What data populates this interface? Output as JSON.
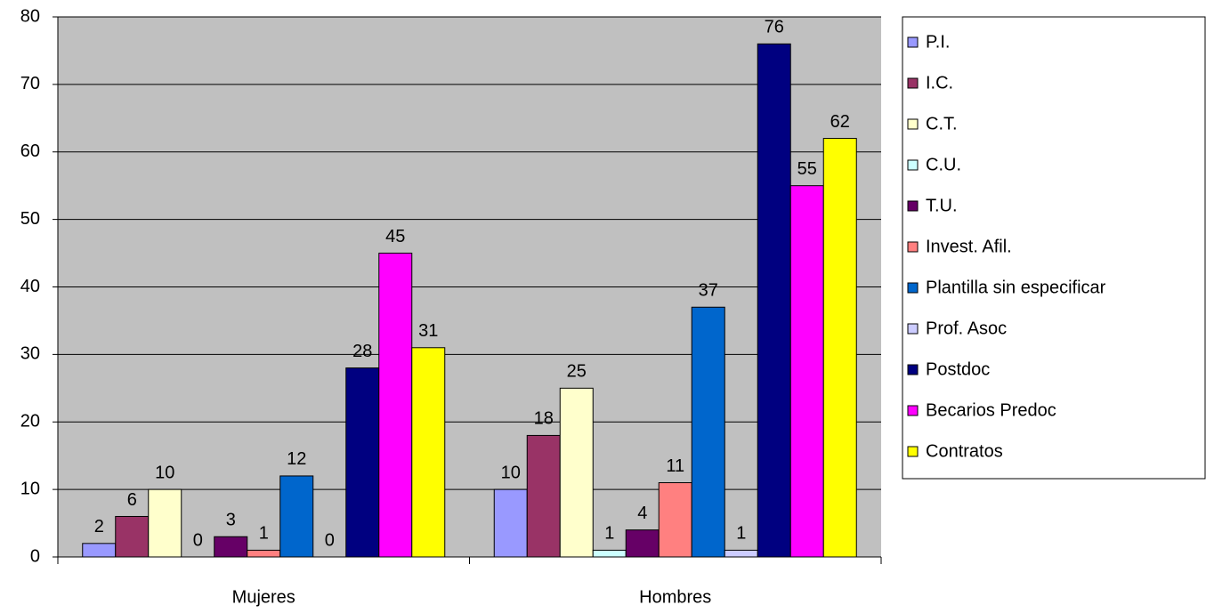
{
  "chart_data": {
    "type": "bar",
    "categories": [
      "Mujeres",
      "Hombres"
    ],
    "series": [
      {
        "name": "P.I.",
        "color": "#9999ff",
        "values": [
          2,
          10
        ]
      },
      {
        "name": "I.C.",
        "color": "#993366",
        "values": [
          6,
          18
        ]
      },
      {
        "name": "C.T.",
        "color": "#ffffcc",
        "values": [
          10,
          25
        ]
      },
      {
        "name": "C.U.",
        "color": "#ccffff",
        "values": [
          0,
          1
        ]
      },
      {
        "name": "T.U.",
        "color": "#660066",
        "values": [
          3,
          4
        ]
      },
      {
        "name": "Invest. Afil.",
        "color": "#ff8080",
        "values": [
          1,
          11
        ]
      },
      {
        "name": "Plantilla sin especificar",
        "color": "#0066cc",
        "values": [
          12,
          37
        ]
      },
      {
        "name": "Prof. Asoc",
        "color": "#ccccff",
        "values": [
          0,
          1
        ]
      },
      {
        "name": "Postdoc",
        "color": "#000080",
        "values": [
          28,
          76
        ]
      },
      {
        "name": "Becarios Predoc",
        "color": "#ff00ff",
        "values": [
          45,
          55
        ]
      },
      {
        "name": "Contratos",
        "color": "#ffff00",
        "values": [
          31,
          62
        ]
      }
    ],
    "ylim": [
      0,
      80
    ],
    "yticks": [
      0,
      10,
      20,
      30,
      40,
      50,
      60,
      70,
      80
    ],
    "grid": true,
    "legend": "right"
  }
}
